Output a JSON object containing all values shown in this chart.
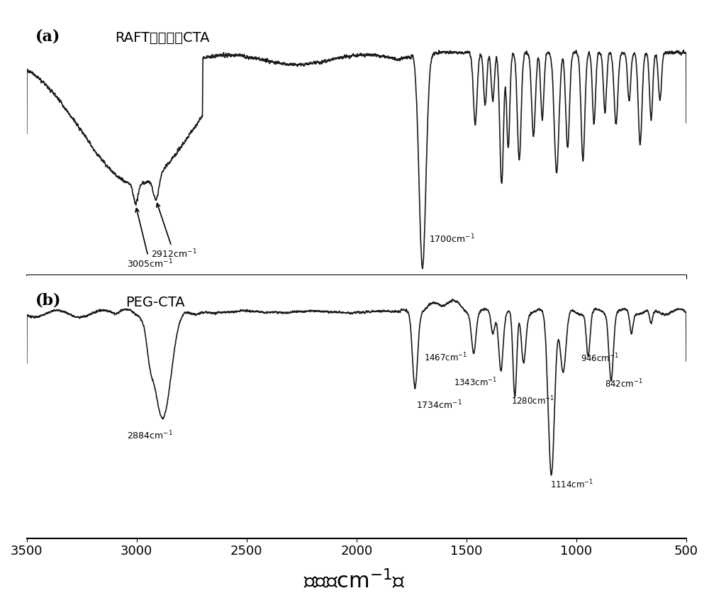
{
  "xlabel": "波数（cm-1）",
  "xlabel_fontsize": 22,
  "background_color": "#ffffff",
  "line_color": "#1a1a1a",
  "xmin": 500,
  "xmax": 3500,
  "panel_a_label": "(a)",
  "panel_b_label": "(b)",
  "panel_a_title": "RAFT链转移剂CTA",
  "panel_b_title": "PEG-CTA",
  "xticks": [
    3500,
    3000,
    2500,
    2000,
    1500,
    1000,
    500
  ]
}
